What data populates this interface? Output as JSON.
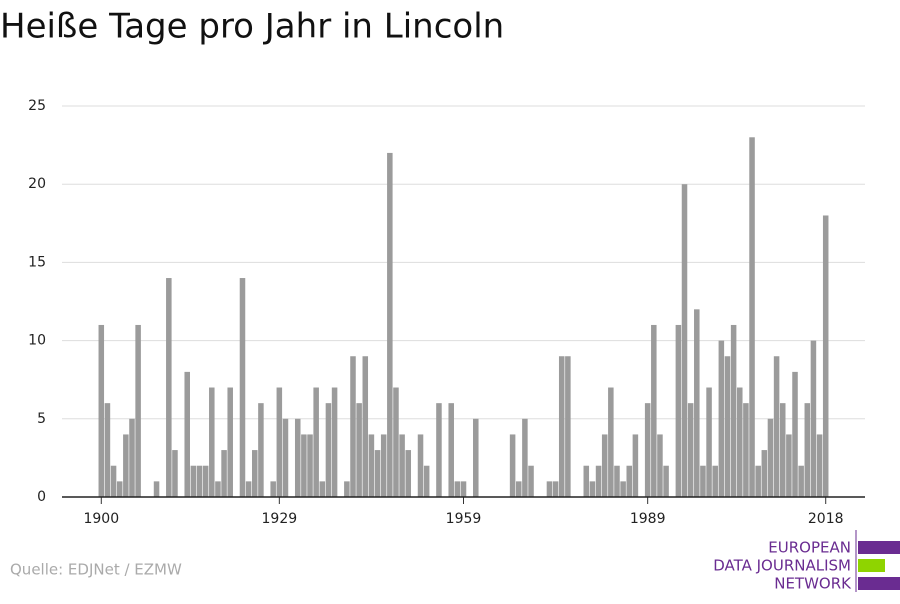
{
  "chart_data": {
    "type": "bar",
    "title": "Heiße Tage pro Jahr in Lincoln",
    "x": [
      1900,
      1901,
      1902,
      1903,
      1904,
      1905,
      1906,
      1907,
      1908,
      1909,
      1910,
      1911,
      1912,
      1913,
      1914,
      1915,
      1916,
      1917,
      1918,
      1919,
      1920,
      1921,
      1922,
      1923,
      1924,
      1925,
      1926,
      1927,
      1928,
      1929,
      1930,
      1931,
      1932,
      1933,
      1934,
      1935,
      1936,
      1937,
      1938,
      1939,
      1940,
      1941,
      1942,
      1943,
      1944,
      1945,
      1946,
      1947,
      1948,
      1949,
      1950,
      1951,
      1952,
      1953,
      1954,
      1955,
      1956,
      1957,
      1958,
      1959,
      1960,
      1961,
      1962,
      1963,
      1964,
      1965,
      1966,
      1967,
      1968,
      1969,
      1970,
      1971,
      1972,
      1973,
      1974,
      1975,
      1976,
      1977,
      1978,
      1979,
      1980,
      1981,
      1982,
      1983,
      1984,
      1985,
      1986,
      1987,
      1988,
      1989,
      1990,
      1991,
      1992,
      1993,
      1994,
      1995,
      1996,
      1997,
      1998,
      1999,
      2000,
      2001,
      2002,
      2003,
      2004,
      2005,
      2006,
      2007,
      2008,
      2009,
      2010,
      2011,
      2012,
      2013,
      2014,
      2015,
      2016,
      2017,
      2018
    ],
    "values": [
      11,
      6,
      2,
      1,
      4,
      5,
      11,
      0,
      0,
      1,
      0,
      14,
      3,
      0,
      8,
      2,
      2,
      2,
      7,
      1,
      3,
      7,
      0,
      14,
      1,
      3,
      6,
      0,
      1,
      7,
      5,
      0,
      5,
      4,
      4,
      7,
      1,
      6,
      7,
      0,
      1,
      9,
      6,
      9,
      4,
      3,
      4,
      22,
      7,
      4,
      3,
      0,
      4,
      2,
      0,
      6,
      0,
      6,
      1,
      1,
      0,
      5,
      0,
      0,
      0,
      0,
      0,
      4,
      1,
      5,
      2,
      0,
      0,
      1,
      1,
      9,
      9,
      0,
      0,
      2,
      1,
      2,
      4,
      7,
      2,
      1,
      2,
      4,
      0,
      6,
      11,
      4,
      2,
      0,
      11,
      20,
      6,
      12,
      2,
      7,
      2,
      10,
      9,
      11,
      7,
      6,
      23,
      2,
      3,
      5,
      9,
      6,
      4,
      8,
      2,
      6,
      10,
      4,
      18
    ],
    "color": "#9b9b9b",
    "xlim": [
      1893.6,
      2024.4
    ],
    "xticks": [
      1900,
      1929,
      1959,
      1989,
      2018
    ],
    "ylim": [
      0,
      25
    ],
    "yticks": [
      0,
      5,
      10,
      15,
      20,
      25
    ],
    "grid": true
  },
  "source": "Quelle: EDJNet / EZMW",
  "logo": {
    "lines": [
      "EUROPEAN",
      "DATA JOURNALISM",
      "NETWORK"
    ]
  }
}
